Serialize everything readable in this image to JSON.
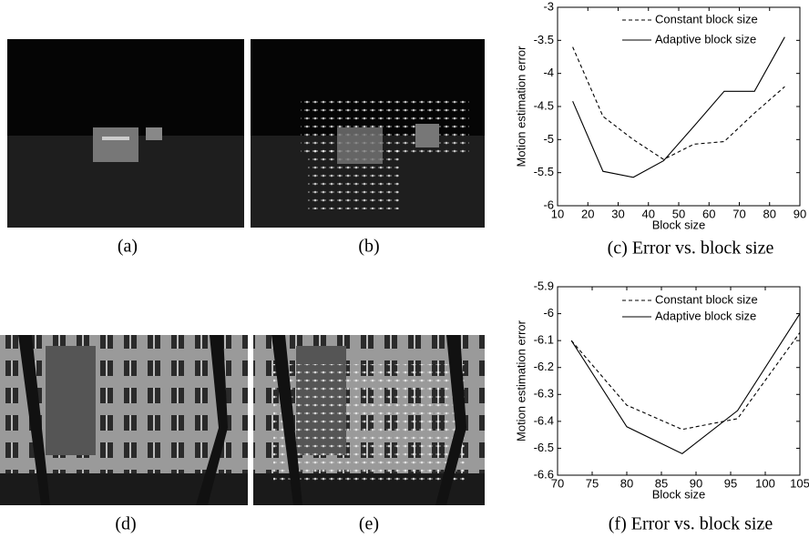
{
  "captions": [
    "(a)",
    "(b)",
    "(d)",
    "(e)"
  ],
  "chart_data": [
    {
      "type": "line",
      "caption": "(c) Error vs. block size",
      "x_label": "Block size",
      "y_label": "Motion estimation error",
      "x": [
        15,
        25,
        35,
        45,
        55,
        65,
        75,
        85
      ],
      "series": [
        {
          "name": "Constant block size",
          "color": "#000000",
          "line_style": "dashed",
          "values": [
            -3.6,
            -4.65,
            -5.0,
            -5.3,
            -5.07,
            -5.03,
            -4.6,
            -4.2
          ]
        },
        {
          "name": "Adaptive block size",
          "color": "#000000",
          "line_style": "solid",
          "values": [
            -4.42,
            -5.48,
            -5.57,
            -5.32,
            -4.8,
            -4.27,
            -4.27,
            -3.45
          ]
        }
      ],
      "xlim": [
        10,
        90
      ],
      "xticks": [
        10,
        20,
        30,
        40,
        50,
        60,
        70,
        80,
        90
      ],
      "ylim": [
        -6,
        -3
      ],
      "yticks": [
        -6,
        -5.5,
        -5,
        -4.5,
        -4,
        -3.5,
        -3
      ],
      "legend": "upper right"
    },
    {
      "type": "line",
      "caption": "(f) Error vs. block size",
      "x_label": "Block size",
      "y_label": "Motion estimation error",
      "x": [
        72,
        80,
        88,
        96,
        105
      ],
      "series": [
        {
          "name": "Constant block size",
          "color": "#000000",
          "line_style": "dashed",
          "values": [
            -6.1,
            -6.34,
            -6.43,
            -6.39,
            -6.07
          ]
        },
        {
          "name": "Adaptive block size",
          "color": "#000000",
          "line_style": "solid",
          "values": [
            -6.1,
            -6.42,
            -6.52,
            -6.36,
            -6.0
          ]
        }
      ],
      "xlim": [
        70,
        105
      ],
      "xticks": [
        70,
        75,
        80,
        85,
        90,
        95,
        100,
        105
      ],
      "ylim": [
        -6.6,
        -5.9
      ],
      "yticks": [
        -6.6,
        -6.5,
        -6.4,
        -6.3,
        -6.2,
        -6.1,
        -6,
        -5.9
      ],
      "legend": "upper right"
    }
  ]
}
